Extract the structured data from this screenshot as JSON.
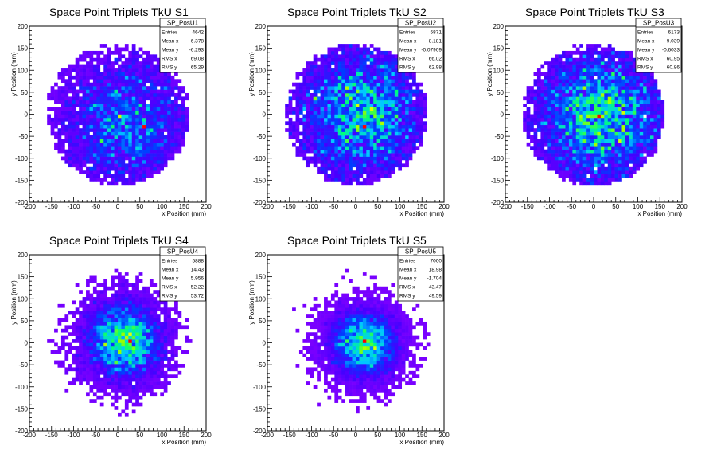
{
  "chart_data": [
    {
      "type": "heatmap",
      "title": "Space Point Triplets TkU S1",
      "xlabel": "x Position (mm)",
      "ylabel": "y Position (mm)",
      "xlim": [
        -200,
        200
      ],
      "ylim": [
        -200,
        200
      ],
      "xticks": [
        -200,
        -150,
        -100,
        -50,
        0,
        50,
        100,
        150,
        200
      ],
      "yticks": [
        -200,
        -150,
        -100,
        -50,
        0,
        50,
        100,
        150,
        200
      ],
      "stats": {
        "name": "SP_PosU1",
        "rows": [
          {
            "label": "Entries",
            "value": "4642"
          },
          {
            "label": "Mean x",
            "value": "6.378"
          },
          {
            "label": "Mean y",
            "value": "-6.293"
          },
          {
            "label": "RMS x",
            "value": "69.08"
          },
          {
            "label": "RMS y",
            "value": "65.29"
          }
        ]
      },
      "distribution": {
        "shape": "disk",
        "radius": 160,
        "center_x": 20,
        "center_y": -20,
        "peak": [
          60,
          -28
        ],
        "entries": 4642
      }
    },
    {
      "type": "heatmap",
      "title": "Space Point Triplets TkU S2",
      "xlabel": "x Position (mm)",
      "ylabel": "y Position (mm)",
      "xlim": [
        -200,
        200
      ],
      "ylim": [
        -200,
        200
      ],
      "xticks": [
        -200,
        -150,
        -100,
        -50,
        0,
        50,
        100,
        150,
        200
      ],
      "yticks": [
        -200,
        -150,
        -100,
        -50,
        0,
        50,
        100,
        150,
        200
      ],
      "stats": {
        "name": "SP_PosU2",
        "rows": [
          {
            "label": "Entries",
            "value": "5871"
          },
          {
            "label": "Mean x",
            "value": "8.181"
          },
          {
            "label": "Mean y",
            "value": "-0.07909"
          },
          {
            "label": "RMS x",
            "value": "66.02"
          },
          {
            "label": "RMS y",
            "value": "62.98"
          }
        ]
      },
      "distribution": {
        "shape": "disk",
        "radius": 160,
        "center_x": 15,
        "center_y": 0,
        "peak": [
          20,
          -28
        ],
        "entries": 5871
      }
    },
    {
      "type": "heatmap",
      "title": "Space Point Triplets TkU S3",
      "xlabel": "x Position (mm)",
      "ylabel": "y Position (mm)",
      "xlim": [
        -200,
        200
      ],
      "ylim": [
        -200,
        200
      ],
      "xticks": [
        -200,
        -150,
        -100,
        -50,
        0,
        50,
        100,
        150,
        200
      ],
      "yticks": [
        -200,
        -150,
        -100,
        -50,
        0,
        50,
        100,
        150,
        200
      ],
      "stats": {
        "name": "SP_PosU3",
        "rows": [
          {
            "label": "Entries",
            "value": "6173"
          },
          {
            "label": "Mean x",
            "value": "9.039"
          },
          {
            "label": "Mean y",
            "value": "-0.6033"
          },
          {
            "label": "RMS x",
            "value": "60.95"
          },
          {
            "label": "RMS y",
            "value": "60.86"
          }
        ]
      },
      "distribution": {
        "shape": "disk",
        "radius": 160,
        "center_x": 15,
        "center_y": -5,
        "peak": [
          10,
          -5
        ],
        "entries": 6173
      }
    },
    {
      "type": "heatmap",
      "title": "Space Point Triplets TkU S4",
      "xlabel": "x Position (mm)",
      "ylabel": "y Position (mm)",
      "xlim": [
        -200,
        200
      ],
      "ylim": [
        -200,
        200
      ],
      "xticks": [
        -200,
        -150,
        -100,
        -50,
        0,
        50,
        100,
        150,
        200
      ],
      "yticks": [
        -200,
        -150,
        -100,
        -50,
        0,
        50,
        100,
        150,
        200
      ],
      "stats": {
        "name": "SP_PosU4",
        "rows": [
          {
            "label": "Entries",
            "value": "5888"
          },
          {
            "label": "Mean x",
            "value": "14.43"
          },
          {
            "label": "Mean y",
            "value": "5.956"
          },
          {
            "label": "RMS x",
            "value": "52.22"
          },
          {
            "label": "RMS y",
            "value": "53.72"
          }
        ]
      },
      "distribution": {
        "shape": "gaussian",
        "center_x": 14,
        "center_y": 6,
        "sigma": 52,
        "peak": [
          25,
          0
        ],
        "entries": 5888
      }
    },
    {
      "type": "heatmap",
      "title": "Space Point Triplets TkU S5",
      "xlabel": "x Position (mm)",
      "ylabel": "y Position (mm)",
      "xlim": [
        -200,
        200
      ],
      "ylim": [
        -200,
        200
      ],
      "xticks": [
        -200,
        -150,
        -100,
        -50,
        0,
        50,
        100,
        150,
        200
      ],
      "yticks": [
        -200,
        -150,
        -100,
        -50,
        0,
        50,
        100,
        150,
        200
      ],
      "stats": {
        "name": "SP_PosU5",
        "rows": [
          {
            "label": "Entries",
            "value": "7000"
          },
          {
            "label": "Mean x",
            "value": "18.98"
          },
          {
            "label": "Mean y",
            "value": "-1.704"
          },
          {
            "label": "RMS x",
            "value": "43.47"
          },
          {
            "label": "RMS y",
            "value": "49.59"
          }
        ]
      },
      "distribution": {
        "shape": "gaussian",
        "center_x": 19,
        "center_y": -2,
        "sigma": 45,
        "peak": [
          20,
          0
        ],
        "entries": 7000
      }
    }
  ]
}
